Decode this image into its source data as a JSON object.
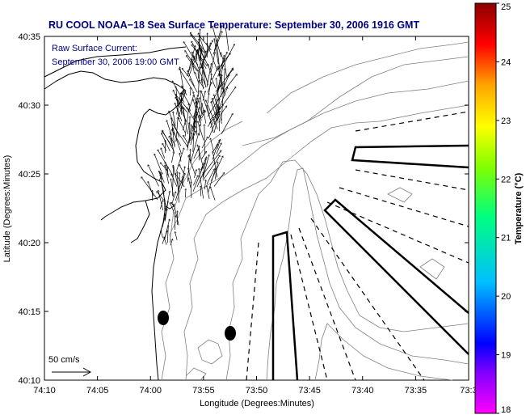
{
  "title": "RU COOL  NOAA−18  Sea Surface Temperature:  September 30, 2006 1916 GMT",
  "inset": {
    "line1": "Raw Surface Current:",
    "line2": "September 30, 2006 19:00 GMT"
  },
  "scale_label": "50 cm/s",
  "x_axis": {
    "label": "Longitude (Degrees:Minutes)",
    "ticks": [
      "74:10",
      "74:05",
      "74:00",
      "73:55",
      "73:50",
      "73:45",
      "73:40",
      "73:35",
      "73:3"
    ]
  },
  "y_axis": {
    "label": "Latitude (Degrees:Minutes)",
    "ticks": [
      "40:35",
      "40:30",
      "40:25",
      "40:20",
      "40:15",
      "40:10"
    ]
  },
  "colorbar": {
    "label": "Temperature (°C)",
    "ticks": [
      "25",
      "24",
      "23",
      "22",
      "21",
      "20",
      "19",
      "18"
    ],
    "range": [
      18,
      25
    ],
    "colors": [
      "#ff00ff",
      "#0000ff",
      "#00bfff",
      "#00ff7f",
      "#ffff00",
      "#ffa500",
      "#ff0000",
      "#8b0000"
    ]
  },
  "colors": {
    "title": "#000080",
    "inset_text": "#000080",
    "coast": "#000000",
    "bathymetry": "#808080"
  },
  "markers": [
    "dot",
    "dot"
  ]
}
